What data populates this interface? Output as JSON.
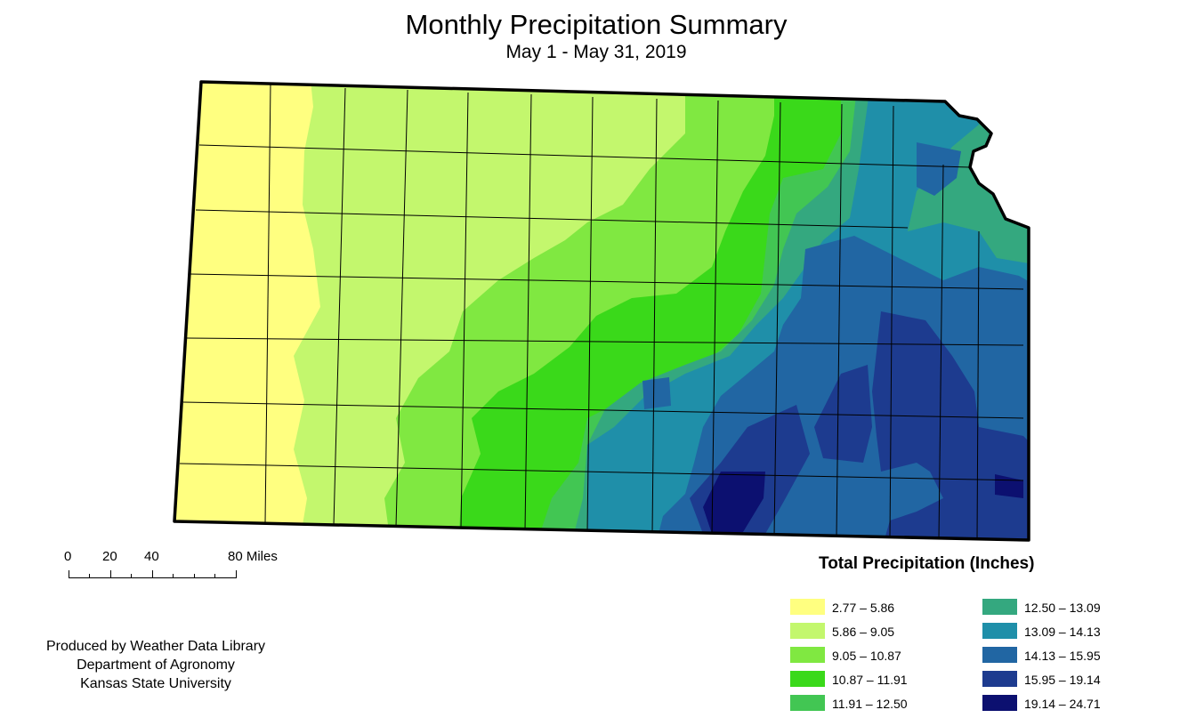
{
  "title": "Monthly Precipitation Summary",
  "subtitle": "May 1 - May 31, 2019",
  "scale_bar": {
    "labels": [
      "0",
      "20",
      "40",
      "80 Miles"
    ]
  },
  "credits": [
    "Produced by Weather Data Library",
    "Department of Agronomy",
    "Kansas State University"
  ],
  "legend": {
    "title": "Total Precipitation (Inches)",
    "classes": [
      {
        "label": "2.77 – 5.86",
        "color": "#ffff80"
      },
      {
        "label": "5.86 – 9.05",
        "color": "#c3f76d"
      },
      {
        "label": "9.05 – 10.87",
        "color": "#80e841"
      },
      {
        "label": "10.87 – 11.91",
        "color": "#3ad91a"
      },
      {
        "label": "11.91 – 12.50",
        "color": "#42c653"
      },
      {
        "label": "12.50 – 13.09",
        "color": "#34a87f"
      },
      {
        "label": "13.09 – 14.13",
        "color": "#1f8fa9"
      },
      {
        "label": "14.13 – 15.95",
        "color": "#2166a3"
      },
      {
        "label": "15.95 – 19.14",
        "color": "#1d3b8f"
      },
      {
        "label": "19.14 – 24.71",
        "color": "#0c1070"
      }
    ]
  }
}
